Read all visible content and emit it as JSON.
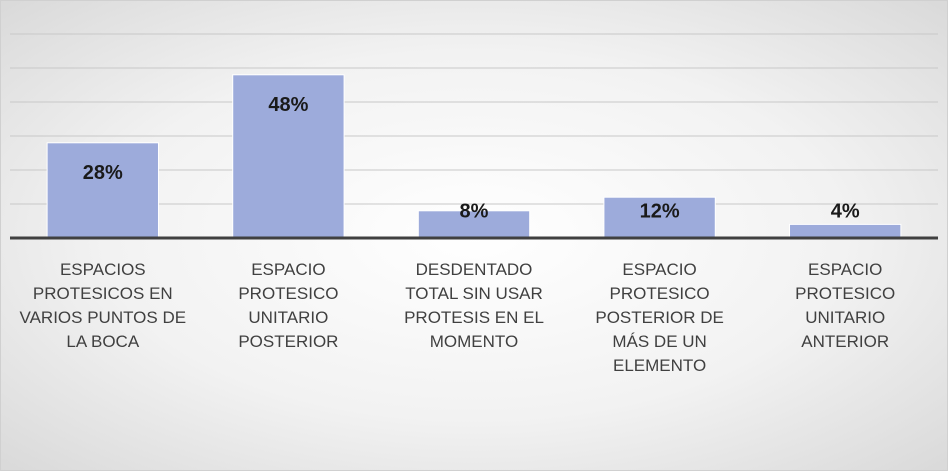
{
  "chart_data": {
    "type": "bar",
    "categories": [
      "ESPACIOS PROTESICOS EN VARIOS PUNTOS DE LA BOCA",
      "ESPACIO PROTESICO UNITARIO POSTERIOR",
      "DESDENTADO TOTAL SIN USAR PROTESIS EN EL MOMENTO",
      "ESPACIO PROTESICO POSTERIOR DE MÁS DE UN ELEMENTO",
      "ESPACIO PROTESICO UNITARIO ANTERIOR"
    ],
    "values": [
      28,
      48,
      8,
      12,
      4
    ],
    "value_labels": [
      "28%",
      "48%",
      "8%",
      "12%",
      "4%"
    ],
    "color": "#9dabdb",
    "ylim": [
      0,
      60
    ],
    "yticks": [
      0,
      10,
      20,
      30,
      40,
      50,
      60
    ],
    "grid": true
  }
}
